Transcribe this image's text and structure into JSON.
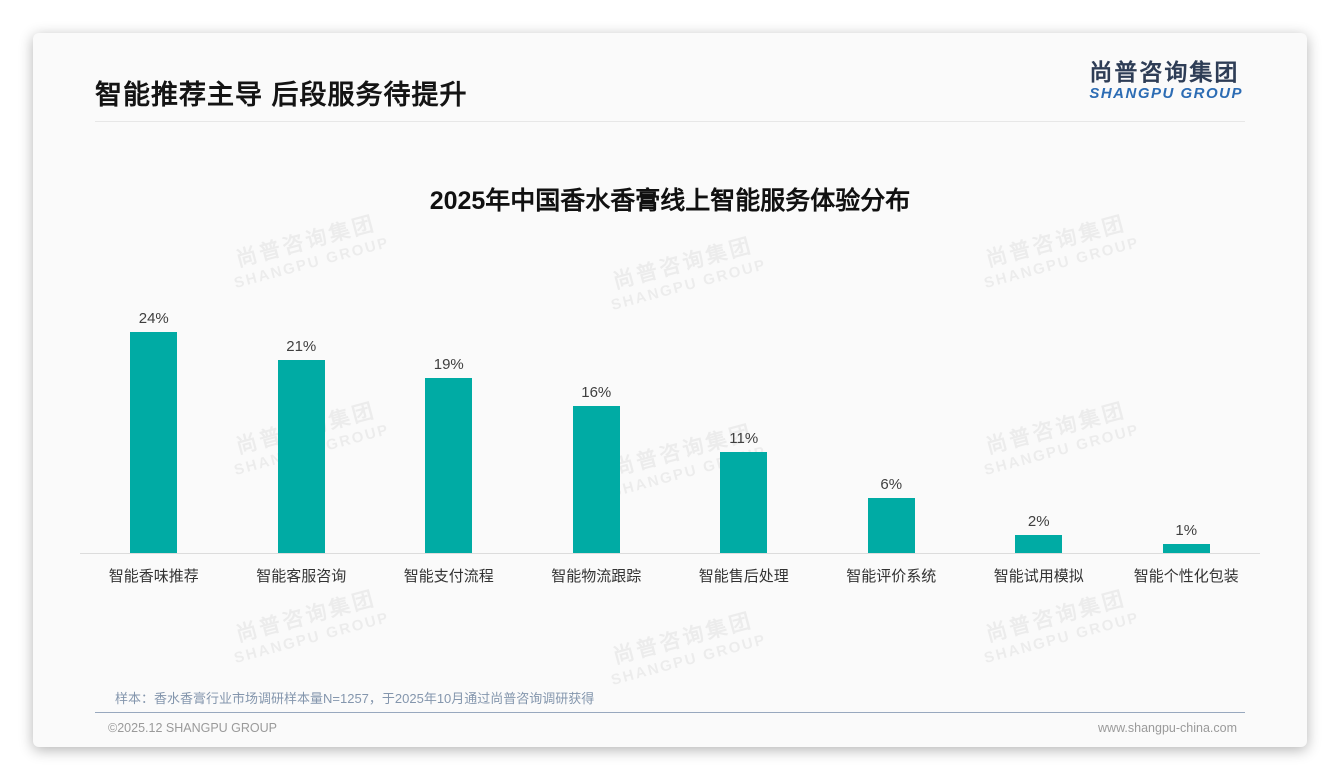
{
  "page": {
    "title": "智能推荐主导 后段服务待提升",
    "logo": {
      "cn": "尚普咨询集团",
      "en": "SHANGPU GROUP"
    },
    "watermark": {
      "line1": "尚普咨询集团",
      "line2": "SHANGPU GROUP"
    },
    "note": "样本：香水香膏行业市场调研样本量N=1257，于2025年10月通过尚普咨询调研获得",
    "footer": {
      "left": "©2025.12 SHANGPU GROUP",
      "right": "www.shangpu-china.com"
    }
  },
  "chart_data": {
    "type": "bar",
    "title": "2025年中国香水香膏线上智能服务体验分布",
    "categories": [
      "智能香味推荐",
      "智能客服咨询",
      "智能支付流程",
      "智能物流跟踪",
      "智能售后处理",
      "智能评价系统",
      "智能试用模拟",
      "智能个性化包装"
    ],
    "values": [
      24,
      21,
      19,
      16,
      11,
      6,
      2,
      1
    ],
    "value_suffix": "%",
    "xlabel": "",
    "ylabel": "",
    "ylim": [
      0,
      26
    ],
    "grid": false,
    "legend": "none",
    "bar_color": "#00ABA4",
    "value_label_position": "above-bars"
  }
}
